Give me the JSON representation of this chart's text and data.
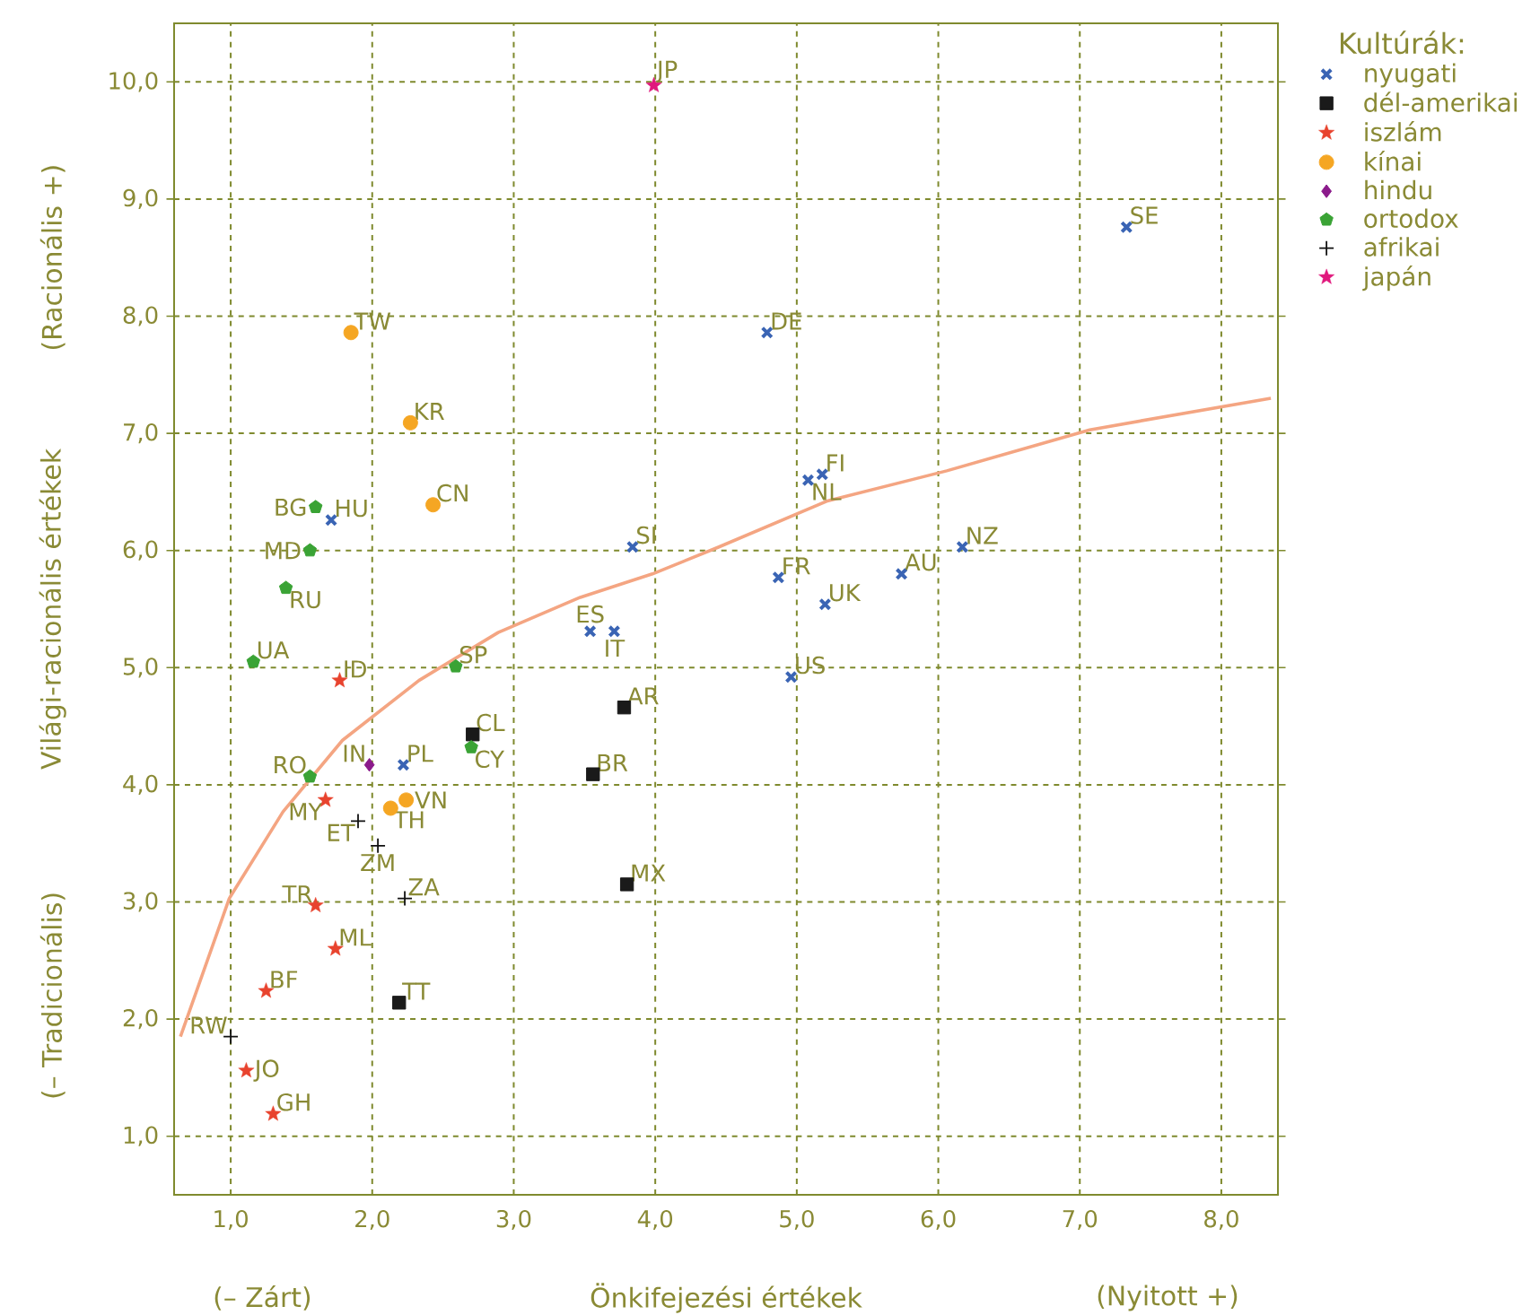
{
  "chart_data": {
    "type": "scatter",
    "xlabel": "Önkifejezési értékek",
    "ylabel": "Világi-racionális értékek",
    "legend_title": "Kultúrák:",
    "xlim": [
      0.6,
      8.4
    ],
    "ylim": [
      0.5,
      10.5
    ],
    "xticks": [
      {
        "value": 1,
        "label": "1,0"
      },
      {
        "value": 2,
        "label": "2,0"
      },
      {
        "value": 3,
        "label": "3,0"
      },
      {
        "value": 4,
        "label": "4,0"
      },
      {
        "value": 5,
        "label": "5,0"
      },
      {
        "value": 6,
        "label": "6,0"
      },
      {
        "value": 7,
        "label": "7,0"
      },
      {
        "value": 8,
        "label": "8,0"
      }
    ],
    "yticks": [
      {
        "value": 1,
        "label": "1,0"
      },
      {
        "value": 2,
        "label": "2,0"
      },
      {
        "value": 3,
        "label": "3,0"
      },
      {
        "value": 4,
        "label": "4,0"
      },
      {
        "value": 5,
        "label": "5,0"
      },
      {
        "value": 6,
        "label": "6,0"
      },
      {
        "value": 7,
        "label": "7,0"
      },
      {
        "value": 8,
        "label": "8,0"
      },
      {
        "value": 9,
        "label": "9,0"
      },
      {
        "value": 10,
        "label": "10,0"
      }
    ],
    "grid": true,
    "legend": "top right",
    "series": [
      {
        "name": "nyugati",
        "color": "#3a64b4",
        "marker": "cross",
        "x": [
          7.33,
          4.79,
          5.18,
          5.08,
          3.84,
          4.87,
          5.2,
          5.74,
          6.17,
          3.54,
          3.71,
          4.96,
          1.71,
          2.22
        ],
        "values": [
          8.76,
          7.86,
          6.65,
          6.6,
          6.03,
          5.77,
          5.54,
          5.8,
          6.03,
          5.31,
          5.31,
          4.92,
          6.26,
          4.17
        ]
      },
      {
        "name": "dél-amerikai",
        "color": "#1a1a1a",
        "marker": "square",
        "x": [
          2.71,
          3.78,
          3.56,
          3.8,
          2.19
        ],
        "values": [
          4.43,
          4.66,
          4.09,
          3.15,
          2.14
        ]
      },
      {
        "name": "iszlám",
        "color": "#e8432e",
        "marker": "star",
        "x": [
          1.77,
          1.67,
          1.6,
          1.74,
          1.25,
          1.11,
          1.3
        ],
        "values": [
          4.89,
          3.87,
          2.97,
          2.6,
          2.24,
          1.56,
          1.19
        ]
      },
      {
        "name": "kínai",
        "color": "#f5a623",
        "marker": "circle",
        "x": [
          1.85,
          2.27,
          2.43,
          2.24,
          2.13
        ],
        "values": [
          7.86,
          7.09,
          6.39,
          3.87,
          3.8
        ]
      },
      {
        "name": "hindu",
        "color": "#8b1a8b",
        "marker": "diamond",
        "x": [
          1.98
        ],
        "values": [
          4.17
        ]
      },
      {
        "name": "ortodox",
        "color": "#3aa335",
        "x": [
          1.6,
          1.56,
          1.39,
          1.16,
          2.59,
          1.56,
          2.7
        ],
        "values": [
          6.37,
          6.0,
          5.68,
          5.05,
          5.01,
          4.07,
          4.32
        ]
      },
      {
        "name": "afrikai",
        "color": "#111111",
        "marker": "plus",
        "x": [
          1.0,
          1.9,
          2.04,
          2.23
        ],
        "values": [
          1.85,
          3.69,
          3.48,
          3.03
        ]
      },
      {
        "name": "japán",
        "color": "#e0197d",
        "marker": "star",
        "x": [
          3.99
        ],
        "values": [
          9.97
        ]
      },
      {
        "type": "line",
        "color": "#f4a582",
        "marker": "none",
        "x": [
          0.645,
          0.99,
          1.37,
          1.79,
          2.33,
          2.89,
          3.47,
          3.98,
          4.45,
          5.21,
          6.06,
          7.07,
          8.35
        ],
        "values": [
          1.85,
          3.03,
          3.77,
          4.38,
          4.89,
          5.3,
          5.6,
          5.8,
          6.03,
          6.42,
          6.68,
          7.03,
          7.3
        ]
      }
    ],
    "annotations": [
      {
        "text": "SE",
        "x": 7.33,
        "y": 8.76
      },
      {
        "text": "DE",
        "x": 4.79,
        "y": 7.86
      },
      {
        "text": "FI",
        "x": 5.18,
        "y": 6.65
      },
      {
        "text": "NL",
        "x": 5.08,
        "y": 6.6
      },
      {
        "text": "SI",
        "x": 3.84,
        "y": 6.03
      },
      {
        "text": "FR",
        "x": 4.87,
        "y": 5.77
      },
      {
        "text": "UK",
        "x": 5.2,
        "y": 5.54
      },
      {
        "text": "AU",
        "x": 5.74,
        "y": 5.8
      },
      {
        "text": "NZ",
        "x": 6.17,
        "y": 6.03
      },
      {
        "text": "ES",
        "x": 3.54,
        "y": 5.31
      },
      {
        "text": "IT",
        "x": 3.71,
        "y": 5.31
      },
      {
        "text": "US",
        "x": 4.96,
        "y": 4.92
      },
      {
        "text": "HU",
        "x": 1.71,
        "y": 6.26
      },
      {
        "text": "PL",
        "x": 2.22,
        "y": 4.17
      },
      {
        "text": "CL",
        "x": 2.71,
        "y": 4.43
      },
      {
        "text": "AR",
        "x": 3.78,
        "y": 4.66
      },
      {
        "text": "BR",
        "x": 3.56,
        "y": 4.09
      },
      {
        "text": "MX",
        "x": 3.8,
        "y": 3.15
      },
      {
        "text": "TT",
        "x": 2.19,
        "y": 2.14
      },
      {
        "text": "ID",
        "x": 1.77,
        "y": 4.89
      },
      {
        "text": "MY",
        "x": 1.67,
        "y": 3.87
      },
      {
        "text": "TR",
        "x": 1.6,
        "y": 2.97
      },
      {
        "text": "ML",
        "x": 1.74,
        "y": 2.6
      },
      {
        "text": "BF",
        "x": 1.25,
        "y": 2.24
      },
      {
        "text": "JO",
        "x": 1.11,
        "y": 1.56
      },
      {
        "text": "GH",
        "x": 1.3,
        "y": 1.19
      },
      {
        "text": "TW",
        "x": 1.85,
        "y": 7.86
      },
      {
        "text": "KR",
        "x": 2.27,
        "y": 7.09
      },
      {
        "text": "CN",
        "x": 2.43,
        "y": 6.39
      },
      {
        "text": "VN",
        "x": 2.24,
        "y": 3.87
      },
      {
        "text": "TH",
        "x": 2.13,
        "y": 3.8
      },
      {
        "text": "IN",
        "x": 1.98,
        "y": 4.17
      },
      {
        "text": "BG",
        "x": 1.6,
        "y": 6.37
      },
      {
        "text": "MD",
        "x": 1.56,
        "y": 6.0
      },
      {
        "text": "RU",
        "x": 1.39,
        "y": 5.68
      },
      {
        "text": "UA",
        "x": 1.16,
        "y": 5.05
      },
      {
        "text": "SP",
        "x": 2.59,
        "y": 5.01
      },
      {
        "text": "RO",
        "x": 1.56,
        "y": 4.07
      },
      {
        "text": "CY",
        "x": 2.7,
        "y": 4.32
      },
      {
        "text": "RW",
        "x": 1.0,
        "y": 1.85
      },
      {
        "text": "ET",
        "x": 1.9,
        "y": 3.69
      },
      {
        "text": "ZM",
        "x": 2.04,
        "y": 3.48
      },
      {
        "text": "ZA",
        "x": 2.23,
        "y": 3.03
      },
      {
        "text": "JP",
        "x": 3.99,
        "y": 9.97
      },
      "(– Zárt)",
      "(Nyitott +)",
      "(Racionális +)",
      "(– Tradicionális)"
    ]
  }
}
